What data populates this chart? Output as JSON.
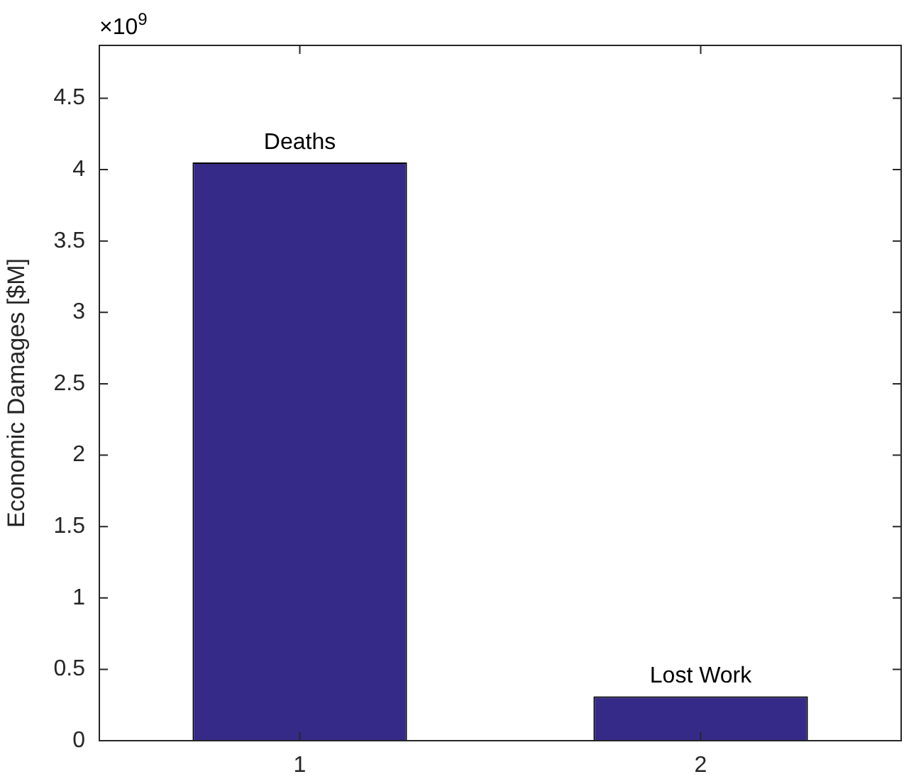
{
  "chart_data": {
    "type": "bar",
    "ylabel": "Economic Damages [$M]",
    "categories": [
      "1",
      "2"
    ],
    "values": [
      4.05,
      0.31
    ],
    "color": "#352a87",
    "ylim": [
      0,
      4.87
    ],
    "yticks": [
      0,
      0.5,
      1,
      1.5,
      2,
      2.5,
      3,
      3.5,
      4,
      4.5
    ],
    "grid": false,
    "annotations": [
      "×10$^{9}$",
      {
        "text": "Deaths",
        "x": "1",
        "y": 4.05
      },
      {
        "text": "Lost Work",
        "x": "2",
        "y": 0.31
      }
    ]
  }
}
